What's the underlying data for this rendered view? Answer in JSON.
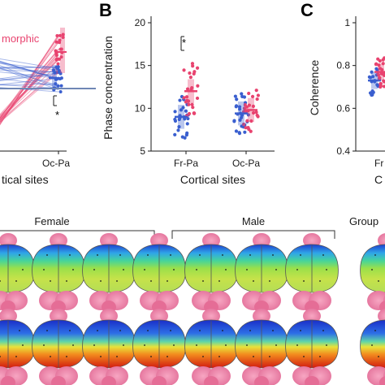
{
  "panel_a": {
    "legend_fragment": "morphic",
    "x_tick_oc_pa": "Oc-Pa",
    "xlabel_fragment": "tical sites",
    "sig_marker": "*",
    "male_color": "#3a5fcf",
    "female_color": "#e8436f"
  },
  "chart_data": [
    {
      "type": "scatter",
      "panel": "B",
      "letter": "B",
      "ylabel": "Phase concentration",
      "xlabel": "Cortical sites",
      "categories": [
        "Fr-Pa",
        "Oc-Pa"
      ],
      "ylim": [
        5,
        20
      ],
      "yticks": [
        5,
        10,
        15,
        20
      ],
      "sig_marker": "*",
      "series": [
        {
          "color": "#3a5fcf",
          "medians": [
            9.0,
            9.4
          ]
        },
        {
          "color": "#e8436f",
          "medians": [
            12.0,
            9.8
          ]
        }
      ]
    },
    {
      "type": "scatter",
      "panel": "C",
      "letter": "C",
      "ylabel": "Coherence",
      "xlabel_fragment": "C",
      "x_tick_fragment": "Fr",
      "ylim": [
        0.4,
        1.0
      ],
      "yticks": [
        0.4,
        0.6,
        0.8,
        1
      ],
      "ytick_labels": [
        "0.4",
        "0.6",
        "0.8",
        "1"
      ],
      "series": [
        {
          "color": "#3a5fcf",
          "medians": [
            0.73
          ]
        },
        {
          "color": "#e8436f",
          "medians": [
            0.77
          ]
        }
      ]
    }
  ],
  "brain_maps": {
    "female_label": "Female",
    "male_label": "Male",
    "group_label": "Group"
  }
}
